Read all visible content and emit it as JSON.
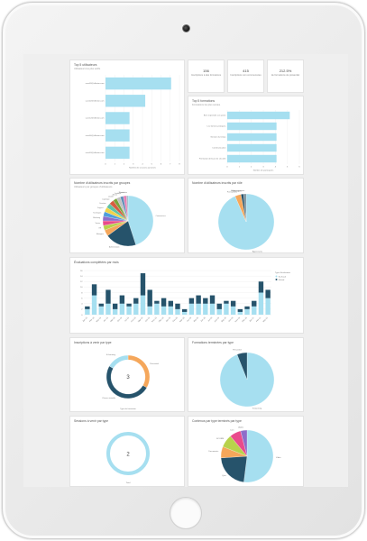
{
  "colors": {
    "bar": "#a6dff0",
    "dark": "#26536b",
    "orange": "#f5a75b",
    "grid": "#ececec",
    "frame": "#e3e3e3"
  },
  "top_users": {
    "title": "Top 5 utilisateurs",
    "subtitle": "Utilisateurs les plus actifs",
    "xlabel": "Nombre de sessions parrainés",
    "chart_data": {
      "type": "bar",
      "orientation": "horizontal",
      "categories": [
        "user09@ellenter.com",
        "user02@ellenter.com",
        "user12@ellenter.com",
        "user06@ellenter.com",
        "user03@ellenter.com"
      ],
      "values": [
        7.1,
        4.3,
        2.6,
        2.6,
        2.6
      ],
      "xlim": [
        0,
        8
      ],
      "xticks": [
        "0",
        "1",
        "2",
        "3",
        "4",
        "5",
        "6",
        "7",
        "8"
      ]
    }
  },
  "stats": [
    {
      "value": "156",
      "label": "Inscriptions à des formations"
    },
    {
      "value": "415",
      "label": "Inscriptions non commencées"
    },
    {
      "value": "212.5%",
      "label": "de formations de présentiel"
    }
  ],
  "top_formations": {
    "title": "Top 5 formations",
    "subtitle": "Formations les plus suivies",
    "xlabel": "Nombre de participants",
    "chart_data": {
      "type": "bar",
      "orientation": "horizontal",
      "categories": [
        "Bien reprendre son poste",
        "Les bonnes pratiques",
        "Gestion du temps",
        "Communication",
        "Formation de base de sécurité"
      ],
      "values": [
        5.2,
        4.1,
        4.1,
        4.1,
        4.1
      ],
      "xlim": [
        0,
        6
      ],
      "xticks": [
        "0",
        "1",
        "2",
        "3",
        "4",
        "5",
        "6"
      ]
    }
  },
  "users_by_group": {
    "title": "Nombre d'utilisateurs inscrits par groupes",
    "subtitle": "Utilisateurs par groupes d'utilisateurs",
    "chart_data": {
      "type": "pie",
      "labels": [
        "Commerciaux",
        "Administration",
        "Managers",
        "RH",
        "Ventes",
        "Marketing",
        "Techniques",
        "Support",
        "Direction",
        "Logistique",
        "Qualité",
        "Achats",
        "Juridique",
        "Finance",
        "Production"
      ],
      "values": [
        45,
        20,
        4,
        3,
        3,
        3,
        3,
        3,
        3,
        3,
        2.5,
        2.5,
        2,
        2,
        1
      ],
      "colors": [
        "#a6dff0",
        "#26536b",
        "#f5a75b",
        "#b8d24b",
        "#e94b8c",
        "#8e6cc9",
        "#4f9ddb",
        "#f0d34a",
        "#60c3a6",
        "#d75c42",
        "#7aa33b",
        "#c2c2c2",
        "#5f8fb7",
        "#e57fb4",
        "#9fb7c6"
      ]
    }
  },
  "users_by_role": {
    "title": "Nombre d'utilisateurs inscrits par rôle",
    "chart_data": {
      "type": "pie",
      "labels": [
        "Apprenants",
        "Formateurs",
        "Managers",
        "Administrateurs"
      ],
      "values": [
        93.5,
        3.5,
        1.5,
        1.5
      ],
      "colors": [
        "#a6dff0",
        "#f5a75b",
        "#26536b",
        "#7a8f99"
      ]
    }
  },
  "evaluations": {
    "title": "Évaluations complétées par mois",
    "legend_title": "Type d'évaluation",
    "legend": [
      "A chaud",
      "A froid"
    ],
    "chart_data": {
      "type": "bar",
      "stacked": true,
      "categories": [
        "Jan 19",
        "Fév 19",
        "Mar 19",
        "Avr 19",
        "Mai 19",
        "Jun 19",
        "Jul 19",
        "Aoû 19",
        "Sep 19",
        "Oct 19",
        "Nov 19",
        "Déc 19",
        "Jan 20",
        "Fév 20",
        "Mar 20",
        "Avr 20",
        "Mai 20",
        "Jun 20",
        "Jul 20",
        "Aoû 20",
        "Sep 20",
        "Oct 20",
        "Nov 20",
        "Déc 20",
        "Jan 21",
        "Fév 21",
        "Mar 21"
      ],
      "series": [
        {
          "name": "A chaud",
          "color": "#a6dff0",
          "values": [
            2,
            7,
            3,
            4,
            2,
            4,
            3,
            4,
            7,
            3,
            4,
            3,
            3,
            2,
            1,
            4,
            4,
            4,
            4,
            2,
            4,
            3,
            1,
            2,
            3,
            8,
            6
          ]
        },
        {
          "name": "A froid",
          "color": "#26536b",
          "values": [
            1,
            4,
            1,
            5,
            2,
            3,
            1,
            2,
            8,
            6,
            1,
            3,
            2,
            2,
            1,
            2,
            3,
            2,
            3,
            2,
            1,
            2,
            1,
            1,
            2,
            4,
            3
          ]
        }
      ],
      "ylim": [
        0,
        16
      ],
      "yticks": [
        "0",
        "2",
        "4",
        "6",
        "8",
        "10",
        "12",
        "14",
        "16"
      ]
    }
  },
  "sessions_by_type": {
    "title": "Inscriptions à venir par type",
    "center_value": "3",
    "footer": "Type de formation",
    "chart_data": {
      "type": "donut",
      "labels": [
        "Présentiel",
        "Classe virtuelle",
        "E-learning"
      ],
      "values": [
        1,
        1.5,
        0.5
      ],
      "colors": [
        "#f5a75b",
        "#26536b",
        "#a6dff0"
      ]
    }
  },
  "sessions_finished_by_type": {
    "title": "Formations terminées par type",
    "chart_data": {
      "type": "pie",
      "labels": [
        "E-learning",
        "Présentiel"
      ],
      "values": [
        94,
        6
      ],
      "colors": [
        "#a6dff0",
        "#26536b"
      ]
    }
  },
  "sessions_to_come": {
    "title": "Sessions à venir par type",
    "center_value": "2",
    "footer": "Total",
    "chart_data": {
      "type": "donut",
      "labels": [
        "Total"
      ],
      "values": [
        2
      ],
      "colors": [
        "#a6dff0"
      ]
    }
  },
  "content_by_type": {
    "title": "Contenus par type terminés par type",
    "chart_data": {
      "type": "pie",
      "labels": [
        "Vidéo",
        "Quiz",
        "Documents",
        "SCORM",
        "Lien",
        "Audio"
      ],
      "values": [
        52,
        22,
        7,
        8,
        7,
        4
      ],
      "colors": [
        "#a6dff0",
        "#26536b",
        "#f5a75b",
        "#b8d24b",
        "#e94b8c",
        "#8e6cc9"
      ]
    }
  }
}
